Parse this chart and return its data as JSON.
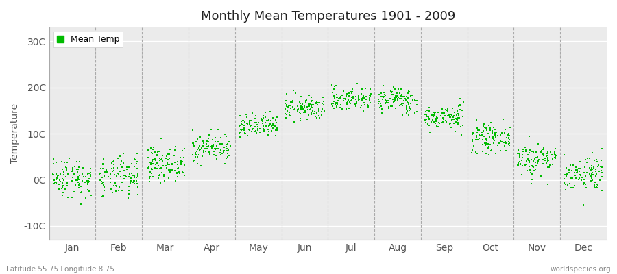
{
  "title": "Monthly Mean Temperatures 1901 - 2009",
  "ylabel": "Temperature",
  "xlabel_labels": [
    "Jan",
    "Feb",
    "Mar",
    "Apr",
    "May",
    "Jun",
    "Jul",
    "Aug",
    "Sep",
    "Oct",
    "Nov",
    "Dec"
  ],
  "ytick_labels": [
    "-10C",
    "0C",
    "10C",
    "20C",
    "30C"
  ],
  "ytick_values": [
    -10,
    0,
    10,
    20,
    30
  ],
  "ylim": [
    -13,
    33
  ],
  "dot_color": "#00bb00",
  "dot_size": 3,
  "background_color": "#ffffff",
  "plot_bg_color": "#ebebeb",
  "legend_label": "Mean Temp",
  "footer_left": "Latitude 55.75 Longitude 8.75",
  "footer_right": "worldspecies.org",
  "years": 109,
  "start_year": 1901,
  "monthly_means": [
    0.5,
    0.5,
    3.5,
    7.0,
    11.5,
    15.5,
    17.5,
    17.2,
    13.5,
    9.0,
    4.5,
    1.5
  ],
  "monthly_stds": [
    2.2,
    2.2,
    1.8,
    1.5,
    1.3,
    1.3,
    1.3,
    1.4,
    1.3,
    1.5,
    1.8,
    2.0
  ]
}
